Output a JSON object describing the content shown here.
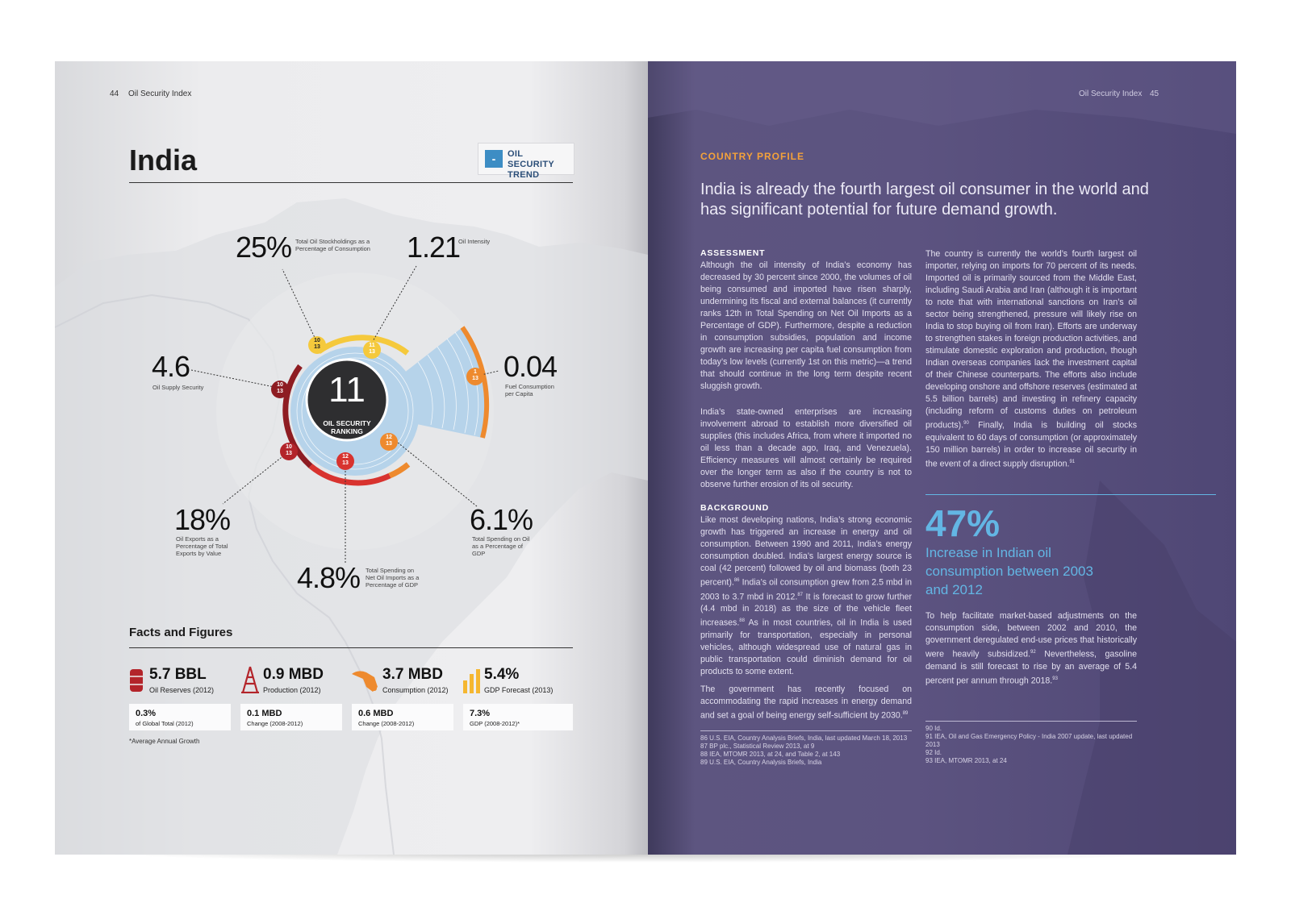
{
  "left_page": {
    "folio_number": "44",
    "folio_title": "Oil Security Index",
    "country": "India",
    "trend_icon_glyph": "-",
    "trend_label": "OIL SECURITY TREND",
    "ranking": {
      "value": "11",
      "label": "OIL SECURITY RANKING"
    },
    "metrics": [
      {
        "value": "25%",
        "label": "Total Oil Stockholdings as a Percentage of Consumption",
        "rank": "10",
        "of": "13"
      },
      {
        "value": "1.21",
        "label": "Oil Intensity",
        "rank": "11",
        "of": "13"
      },
      {
        "value": "0.04",
        "label": "Fuel Consumption per Capita",
        "rank": "1",
        "of": "13"
      },
      {
        "value": "6.1%",
        "label": "Total Spending on Oil as a Percentage of GDP",
        "rank": "12",
        "of": "13"
      },
      {
        "value": "4.8%",
        "label": "Total Spending on Net Oil Imports as a Percentage of GDP",
        "rank": "12",
        "of": "13"
      },
      {
        "value": "18%",
        "label": "Oil Exports as a Percentage of Total Exports by Value",
        "rank": "10",
        "of": "13"
      },
      {
        "value": "4.6",
        "label": "Oil Supply Security",
        "rank": "10",
        "of": "13"
      }
    ],
    "facts_heading": "Facts and Figures",
    "facts": [
      {
        "icon": "oil-barrel-icon",
        "value": "5.7 BBL",
        "label": "Oil Reserves (2012)",
        "box_value": "0.3%",
        "box_label": "of Global Total (2012)"
      },
      {
        "icon": "oil-derrick-icon",
        "value": "0.9 MBD",
        "label": "Production (2012)",
        "box_value": "0.1 MBD",
        "box_label": "Change (2008-2012)"
      },
      {
        "icon": "fuel-nozzle-icon",
        "value": "3.7 MBD",
        "label": "Consumption (2012)",
        "box_value": "0.6 MBD",
        "box_label": "Change (2008-2012)"
      },
      {
        "icon": "bar-chart-icon",
        "value": "5.4%",
        "label": "GDP Forecast (2013)",
        "box_value": "7.3%",
        "box_label": "GDP (2008-2012)*"
      }
    ],
    "footnote": "*Average Annual Growth",
    "colors": {
      "yellow": "#f5c93c",
      "orange": "#ee8a2e",
      "red": "#d8332f",
      "darkred": "#8e1c22",
      "blue": "#b6d3ea",
      "dark": "#2e2e30"
    }
  },
  "right_page": {
    "folio_title": "Oil Security Index",
    "folio_number": "45",
    "kicker": "COUNTRY PROFILE",
    "lead": "India is already the fourth largest oil consumer in the world and has significant potential for future demand growth.",
    "assessment_heading": "ASSESSMENT",
    "assessment_p1_a": "Although the oil intensity of India’s economy has decreased by 30 percent since 2000, the volumes of oil being consumed and imported have risen sharply, undermining its fiscal and external balances (it currently ranks 12th in Total Spending on Net Oil Imports as a Percentage of GDP). Furthermore, despite a reduction in consumption subsidies, population and income growth are increasing per capita fuel consumption from today’s low levels (currently 1st on this metric)—a trend that should continue in the long term despite recent sluggish growth.",
    "assessment_p2": "India’s state-owned enterprises are increasing involvement abroad to establish more diversified oil supplies (this includes Africa, from where it imported no oil less than a decade ago, Iraq, and Venezuela). Efficiency measures will almost certainly be required over the longer term as also if the country is not to observe further erosion of its oil security.",
    "background_heading": "BACKGROUND",
    "background_p1_a": "Like most developing nations, India’s strong economic growth has triggered an increase in energy and oil consumption. Between 1990 and 2011, India’s energy consumption doubled. India’s largest energy source is coal (42 percent) followed by oil and biomass (both 23 percent).",
    "sup86": "86",
    "background_p1_b": " India’s oil consumption grew from 2.5 mbd in 2003 to 3.7 mbd in 2012.",
    "sup87": "87",
    "background_p1_c": " It is forecast to grow further (4.4 mbd in 2018) as the size of the vehicle fleet increases.",
    "sup88": "88",
    "background_p1_d": " As in most countries, oil in India is used primarily for transportation, especially in personal vehicles, although widespread use of natural gas in public transportation could diminish demand for oil products to some extent.",
    "background_p2": "The government has recently focused on accommodating the rapid increases in energy demand and set a goal of being energy self-sufficient by 2030.",
    "sup89": "89",
    "right_col_p1_a": "The country is currently the world’s fourth largest oil importer, relying on imports for 70 percent of its needs. Imported oil is primarily sourced from the Middle East, including Saudi Arabia and Iran (although it is important to note that with international sanctions on Iran’s oil sector being strengthened, pressure will likely rise on India to stop buying oil from Iran). Efforts are underway to strengthen stakes in foreign production activities, and stimulate domestic exploration and production, though Indian overseas companies lack the investment capital of their Chinese counterparts. The efforts also include developing onshore and offshore reserves (estimated at 5.5 billion barrels) and investing in refinery capacity (including reform of customs duties on petroleum products).",
    "sup90": "90",
    "right_col_p1_b": " Finally, India is building oil stocks equivalent to 60 days of consumption (or approximately 150 million barrels) in order to increase oil security in the event of a direct supply disruption.",
    "sup91": "91",
    "stat_value": "47%",
    "stat_caption": "Increase in Indian oil consumption between 2003 and 2012",
    "right_col_p2_a": "To help facilitate market-based adjustments on the consumption side, between 2002 and 2010, the government deregulated end-use prices that historically were heavily subsidized.",
    "sup92": "92",
    "right_col_p2_b": " Nevertheless, gasoline demand is still forecast to rise by an average of 5.4 percent per annum through 2018.",
    "sup93": "93",
    "footnotes_left": [
      "86   U.S. EIA, Country Analysis Briefs, India, last updated March 18, 2013",
      "87   BP plc., Statistical Review 2013, at 9",
      "88   IEA, MTOMR 2013, at 24, and Table 2, at 143",
      "89   U.S. EIA, Country Analysis Briefs, India"
    ],
    "footnotes_right": [
      "90   Id.",
      "91   IEA, Oil and Gas Emergency Policy - India 2007 update, last updated",
      "       2013",
      "92   Id.",
      "93   IEA, MTOMR 2013, at 24"
    ]
  }
}
